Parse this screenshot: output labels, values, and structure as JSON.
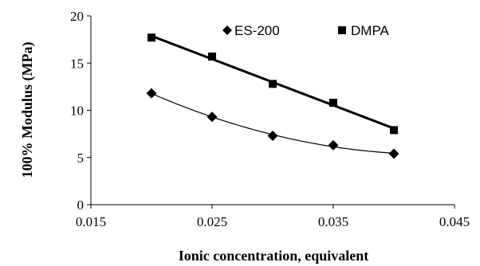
{
  "chart_data": {
    "type": "scatter",
    "title": "",
    "xlabel": "Ionic concentration, equivalent",
    "ylabel": "100% Modulus (MPa)",
    "xlim": [
      0.015,
      0.045
    ],
    "ylim": [
      0,
      20
    ],
    "xticks": [
      "0.015",
      "0.025",
      "0.035",
      "0.045"
    ],
    "yticks": [
      "0",
      "5",
      "10",
      "15",
      "20"
    ],
    "grid": false,
    "legend_position": "top-right",
    "series": [
      {
        "name": "ES-200",
        "marker": "diamond",
        "trendline": "polynomial",
        "color": "#000000",
        "x": [
          0.02,
          0.025,
          0.03,
          0.035,
          0.04
        ],
        "y": [
          11.8,
          9.3,
          7.3,
          6.3,
          5.4
        ]
      },
      {
        "name": "DMPA",
        "marker": "square",
        "trendline": "linear",
        "color": "#000000",
        "x": [
          0.02,
          0.025,
          0.03,
          0.035,
          0.04
        ],
        "y": [
          17.7,
          15.7,
          12.8,
          10.8,
          7.9
        ]
      }
    ]
  }
}
